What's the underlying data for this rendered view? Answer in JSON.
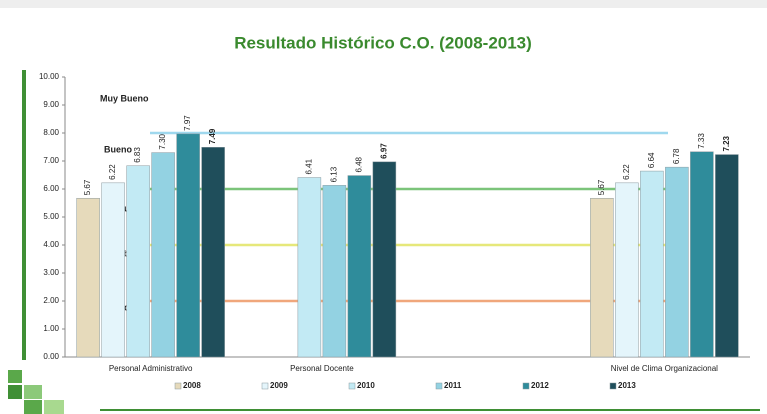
{
  "chart_data": {
    "type": "bar",
    "title": "Resultado Histórico C.O. (2008-2013)",
    "categories": [
      "Personal Administrativo",
      "Personal Docente",
      null,
      "Nivel de Clima Organizacional"
    ],
    "series": [
      {
        "name": "2008",
        "color": "#e6dabb",
        "values": [
          5.67,
          null,
          null,
          5.67
        ],
        "value_labels": [
          "5.67",
          null,
          null,
          "5.67"
        ]
      },
      {
        "name": "2009",
        "color": "#e4f5fb",
        "values": [
          6.22,
          null,
          null,
          6.22
        ],
        "value_labels": [
          "6.22",
          null,
          null,
          "6.22"
        ]
      },
      {
        "name": "2010",
        "color": "#c2eaf4",
        "values": [
          6.83,
          6.41,
          null,
          6.64
        ],
        "value_labels": [
          "6.83",
          "6.41",
          null,
          "6.64"
        ]
      },
      {
        "name": "2011",
        "color": "#93d2e2",
        "values": [
          7.3,
          6.13,
          null,
          6.78
        ],
        "value_labels": [
          "7.30",
          "6.13",
          null,
          "6.78"
        ]
      },
      {
        "name": "2012",
        "color": "#2f8c9b",
        "values": [
          7.97,
          6.48,
          null,
          7.33
        ],
        "value_labels": [
          "7.97",
          "6.48",
          null,
          "7.33"
        ]
      },
      {
        "name": "2013",
        "color": "#1f4e5b",
        "values": [
          7.49,
          6.97,
          null,
          7.23
        ],
        "value_labels": [
          "7.49",
          "6.97",
          null,
          "7.23"
        ]
      }
    ],
    "ylim": [
      0,
      10
    ],
    "yticks": [
      {
        "value": 0,
        "label": "0.00"
      },
      {
        "value": 1,
        "label": "1.00"
      },
      {
        "value": 2,
        "label": "2.00"
      },
      {
        "value": 3,
        "label": "3.00"
      },
      {
        "value": 4,
        "label": "4.00"
      },
      {
        "value": 5,
        "label": "5.00"
      },
      {
        "value": 6,
        "label": "6.00"
      },
      {
        "value": 7,
        "label": "7.00"
      },
      {
        "value": 8,
        "label": "8.00"
      },
      {
        "value": 9,
        "label": "9.00"
      },
      {
        "value": 10,
        "label": "10.00"
      }
    ],
    "reference_lines": [
      {
        "value": 8,
        "color": "#9fd8ee"
      },
      {
        "value": 6,
        "color": "#7cc47a"
      },
      {
        "value": 4,
        "color": "#e6e87a"
      },
      {
        "value": 2,
        "color": "#f0a77c"
      }
    ],
    "annotations": [
      "Muy Bueno",
      "Bueno",
      "Regular",
      "Débil",
      "Crítico"
    ],
    "legend": "bottom"
  }
}
